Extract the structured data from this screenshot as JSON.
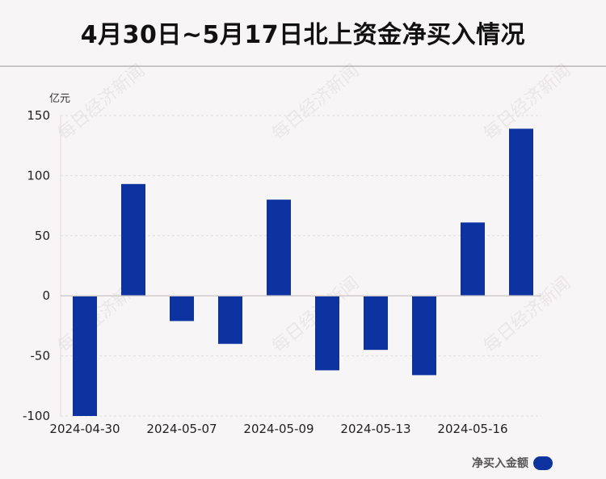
{
  "title": "4月30日~5月17日北上资金净买入情况",
  "watermark_text": "每日经济新闻",
  "colors": {
    "bar": "#0c33a0",
    "axis": "#999999",
    "grid": "#dddddd",
    "background": "#f8f5f6"
  },
  "chart_data": {
    "type": "bar",
    "unit_label": "亿元",
    "categories": [
      "2024-04-30",
      "",
      "2024-05-07",
      "",
      "2024-05-09",
      "",
      "2024-05-13",
      "",
      "2024-05-16",
      ""
    ],
    "series": [
      {
        "name": "净买入金额",
        "values": [
          -100,
          93,
          -21,
          -40,
          80,
          -62,
          -45,
          -66,
          61,
          139
        ]
      }
    ],
    "ylim": [
      -100,
      150
    ],
    "yticks": [
      150,
      100,
      50,
      0,
      -50,
      -100
    ],
    "grid": true,
    "legend_position": "bottom-right"
  }
}
